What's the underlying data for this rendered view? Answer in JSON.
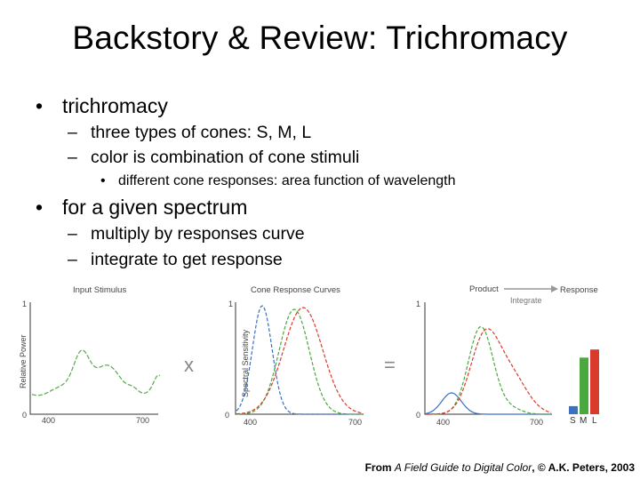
{
  "slide": {
    "title": "Backstory & Review: Trichromacy",
    "bullets": [
      {
        "text": "trichromacy",
        "sub": [
          {
            "text": "three types of cones: S, M, L"
          },
          {
            "text": "color is combination of cone stimuli"
          }
        ],
        "subsub": "different cone responses: area function of wavelength"
      },
      {
        "text": "for a given spectrum",
        "sub": [
          {
            "text": "multiply by responses curve"
          },
          {
            "text": "integrate to get response"
          }
        ]
      }
    ],
    "bullet_glyph": "•",
    "dash_glyph": "–"
  },
  "figure": {
    "panel1": {
      "title": "Input Stimulus",
      "ylabel": "Relative Power",
      "y_ticks": [
        "1",
        "0"
      ],
      "x_ticks": [
        "400",
        "700"
      ]
    },
    "operator_times": "x",
    "panel2": {
      "title": "Cone Response Curves",
      "ylabel": "Spectral Sensitivity",
      "y_ticks": [
        "1",
        "0"
      ],
      "x_ticks": [
        "400",
        "700"
      ]
    },
    "operator_equals": "=",
    "panel3": {
      "title_product": "Product",
      "title_integrate": "Integrate",
      "title_response": "Response",
      "y_ticks": [
        "1",
        "0"
      ],
      "x_ticks": [
        "400",
        "700"
      ]
    },
    "response_labels": [
      "S",
      "M",
      "L"
    ],
    "response_values": [
      0.07,
      0.49,
      0.56
    ],
    "colors": {
      "stimulus": "#59a84e",
      "S": "#3a6fc4",
      "M": "#4ba840",
      "L": "#d93a2c"
    }
  },
  "credit": {
    "prefix": "From ",
    "book": "A Field Guide to Digital Color",
    "suffix": ", © A.K. Peters, 2003"
  }
}
